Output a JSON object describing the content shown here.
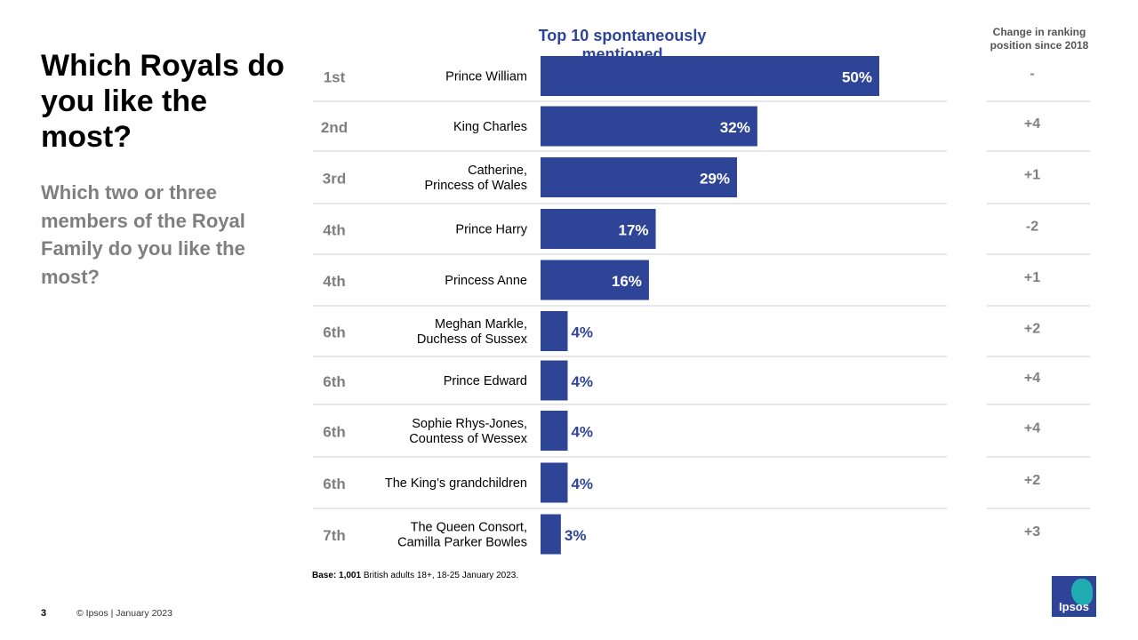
{
  "header": {
    "title": "Which Royals do you like the most?",
    "subtitle": "Which two or three members of the Royal Family do you like the most?"
  },
  "chart_data": {
    "type": "bar",
    "orientation": "horizontal",
    "title": "Top 10 spontaneously mentioned",
    "change_header": "Change in ranking position since 2018",
    "unit": "%",
    "bar_color": "#2e4597",
    "rows": [
      {
        "rank": "1st",
        "label": [
          "Prince William"
        ],
        "value": 50,
        "change": "-"
      },
      {
        "rank": "2nd",
        "label": [
          "King Charles"
        ],
        "value": 32,
        "change": "+4"
      },
      {
        "rank": "3rd",
        "label": [
          "Catherine,",
          "Princess of Wales"
        ],
        "value": 29,
        "change": "+1"
      },
      {
        "rank": "4th",
        "label": [
          "Prince Harry"
        ],
        "value": 17,
        "change": "-2"
      },
      {
        "rank": "4th",
        "label": [
          "Princess Anne"
        ],
        "value": 16,
        "change": "+1"
      },
      {
        "rank": "6th",
        "label": [
          "Meghan Markle,",
          "Duchess of Sussex"
        ],
        "value": 4,
        "change": "+2"
      },
      {
        "rank": "6th",
        "label": [
          "Prince Edward"
        ],
        "value": 4,
        "change": "+4"
      },
      {
        "rank": "6th",
        "label": [
          "Sophie Rhys-Jones,",
          "Countess of Wessex"
        ],
        "value": 4,
        "change": "+4"
      },
      {
        "rank": "6th",
        "label": [
          "The King’s grandchildren"
        ],
        "value": 4,
        "change": "+2"
      },
      {
        "rank": "7th",
        "label": [
          "The Queen Consort,",
          "Camilla Parker Bowles"
        ],
        "value": 3,
        "change": "+3"
      }
    ]
  },
  "footer": {
    "base_bold": "Base: 1,001",
    "base_rest": " British adults 18+, 18-25 January 2023.",
    "page_number": "3",
    "copyright": "© Ipsos | January 2023",
    "logo_text": "Ipsos"
  }
}
